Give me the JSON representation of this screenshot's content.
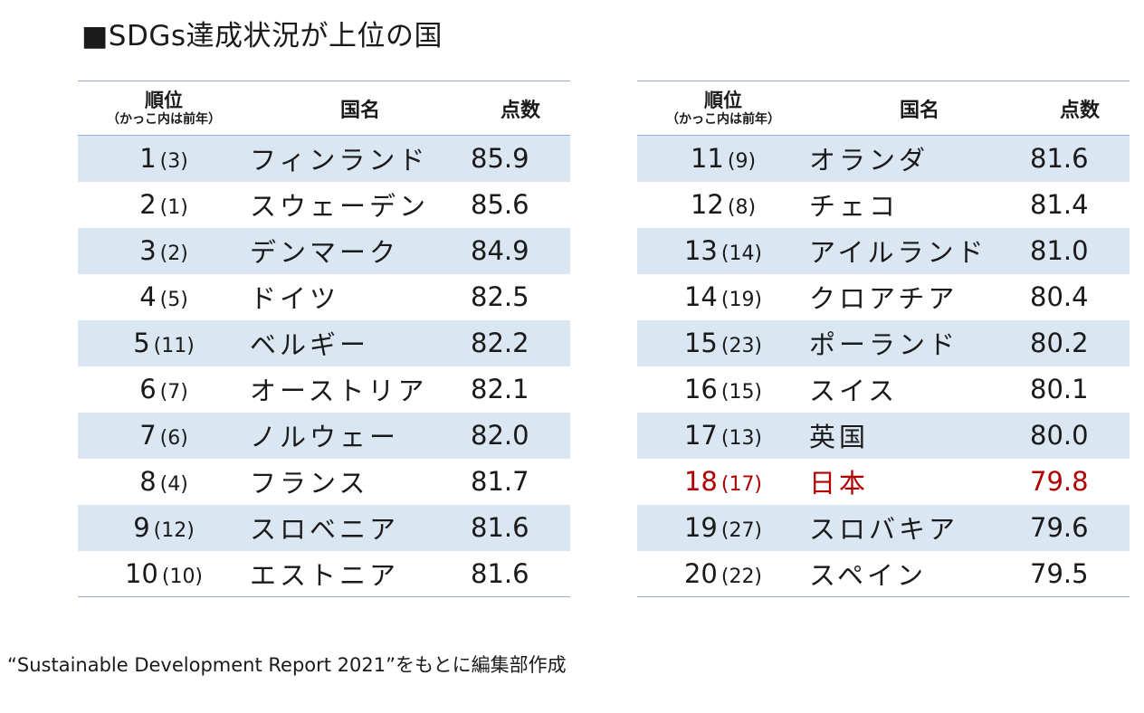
{
  "title": "■SDGs達成状況が上位の国",
  "headers": {
    "rank": "順位",
    "rank_note": "（かっこ内は前年）",
    "country": "国名",
    "score": "点数"
  },
  "left_rows": [
    {
      "rank": "1",
      "prev": "(3)",
      "country": "フィンランド",
      "score": "85.9"
    },
    {
      "rank": "2",
      "prev": "(1)",
      "country": "スウェーデン",
      "score": "85.6"
    },
    {
      "rank": "3",
      "prev": "(2)",
      "country": "デンマーク",
      "score": "84.9"
    },
    {
      "rank": "4",
      "prev": "(5)",
      "country": "ドイツ",
      "score": "82.5"
    },
    {
      "rank": "5",
      "prev": "(11)",
      "country": "ベルギー",
      "score": "82.2"
    },
    {
      "rank": "6",
      "prev": "(7)",
      "country": "オーストリア",
      "score": "82.1"
    },
    {
      "rank": "7",
      "prev": "(6)",
      "country": "ノルウェー",
      "score": "82.0"
    },
    {
      "rank": "8",
      "prev": "(4)",
      "country": "フランス",
      "score": "81.7"
    },
    {
      "rank": "9",
      "prev": "(12)",
      "country": "スロベニア",
      "score": "81.6"
    },
    {
      "rank": "10",
      "prev": "(10)",
      "country": "エストニア",
      "score": "81.6"
    }
  ],
  "right_rows": [
    {
      "rank": "11",
      "prev": "(9)",
      "country": "オランダ",
      "score": "81.6"
    },
    {
      "rank": "12",
      "prev": "(8)",
      "country": "チェコ",
      "score": "81.4"
    },
    {
      "rank": "13",
      "prev": "(14)",
      "country": "アイルランド",
      "score": "81.0"
    },
    {
      "rank": "14",
      "prev": "(19)",
      "country": "クロアチア",
      "score": "80.4"
    },
    {
      "rank": "15",
      "prev": "(23)",
      "country": "ポーランド",
      "score": "80.2"
    },
    {
      "rank": "16",
      "prev": "(15)",
      "country": "スイス",
      "score": "80.1"
    },
    {
      "rank": "17",
      "prev": "(13)",
      "country": "英国",
      "score": "80.0"
    },
    {
      "rank": "18",
      "prev": "(17)",
      "country": "日本",
      "score": "79.8",
      "highlight": true
    },
    {
      "rank": "19",
      "prev": "(27)",
      "country": "スロバキア",
      "score": "79.6"
    },
    {
      "rank": "20",
      "prev": "(22)",
      "country": "スペイン",
      "score": "79.5"
    }
  ],
  "colors": {
    "row_stripe": "#dbe6f3",
    "rule": "#8fb0d6",
    "highlight": "#b00000"
  },
  "source": "“Sustainable Development Report 2021”をもとに編集部作成"
}
